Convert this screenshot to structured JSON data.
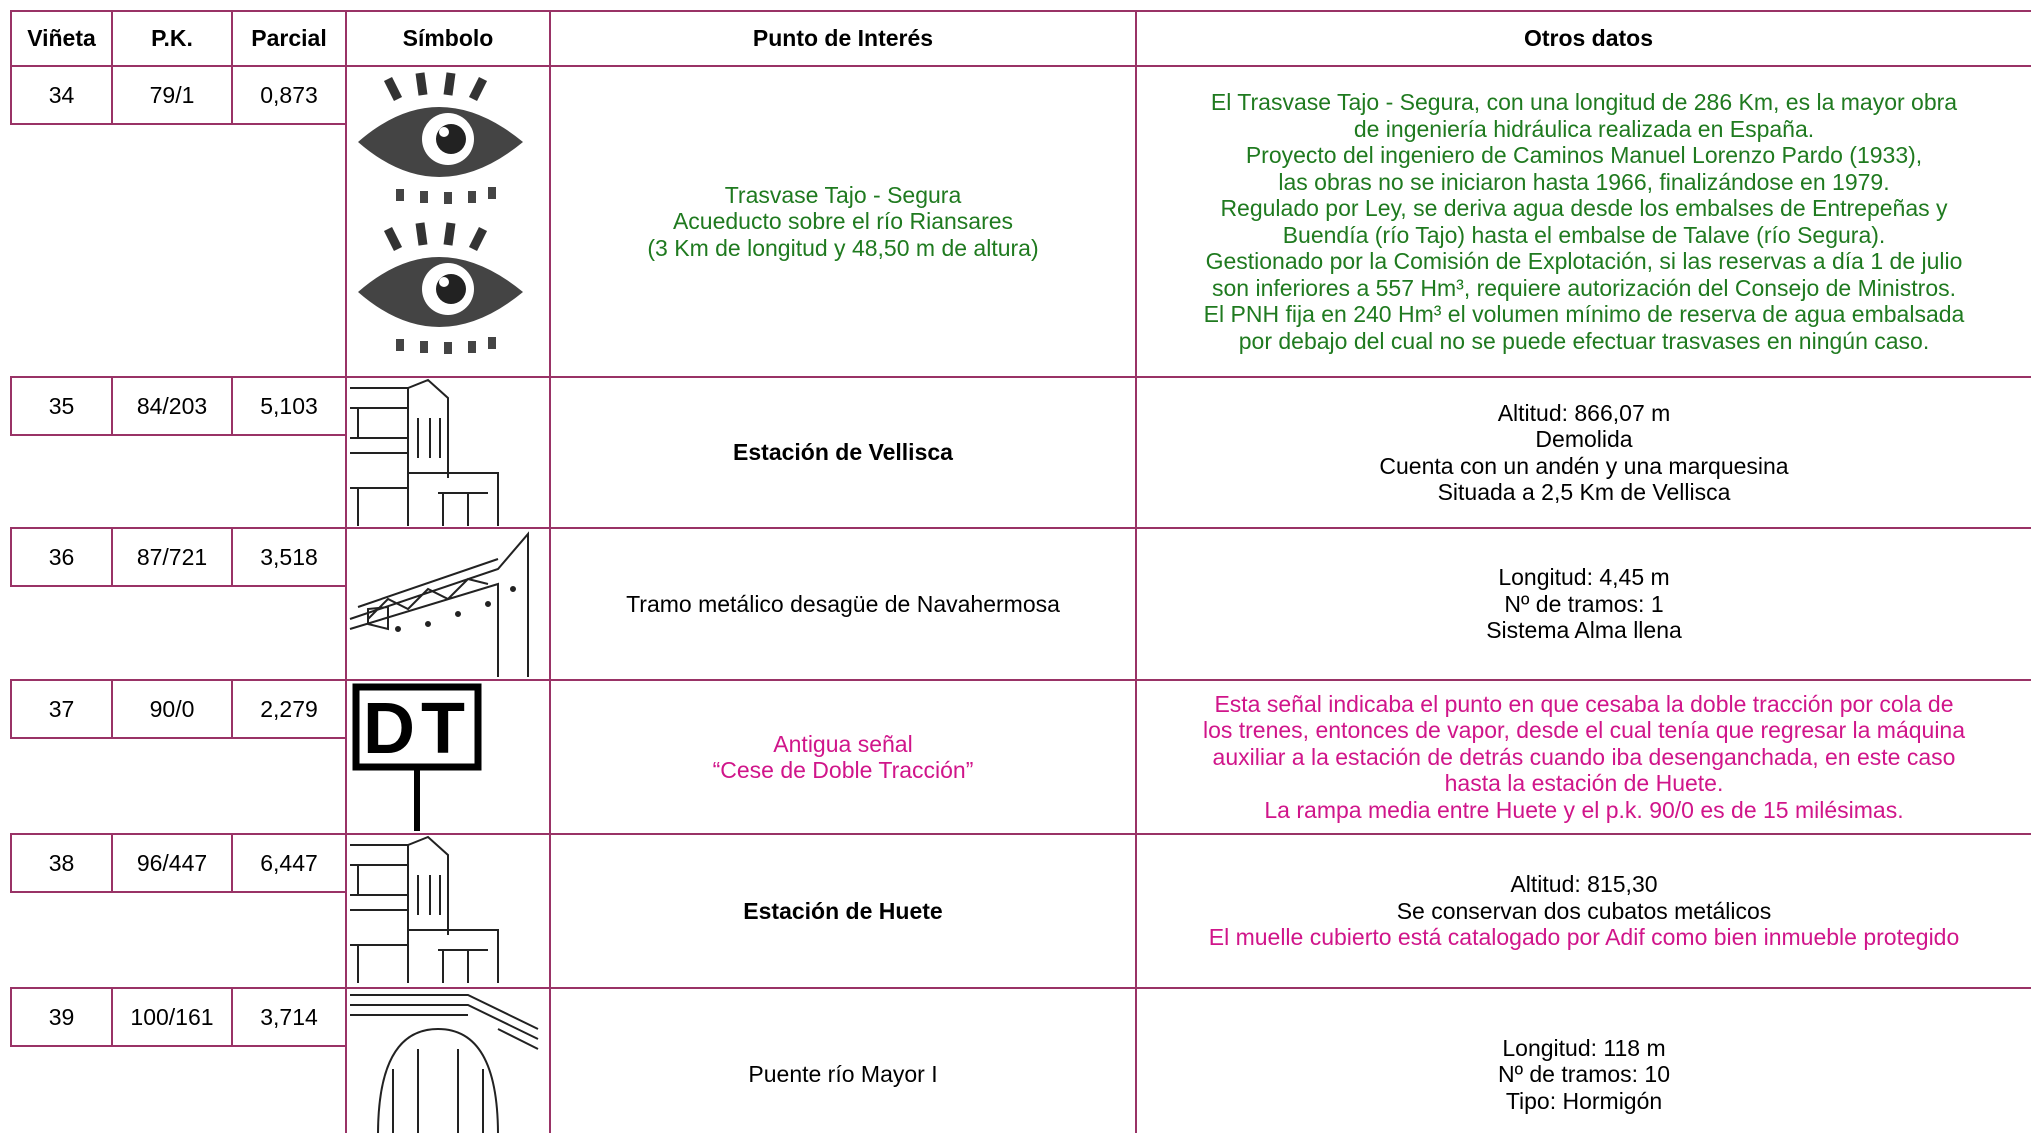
{
  "header": [
    "Viñeta",
    "P.K.",
    "Parcial",
    "Símbolo",
    "Punto de Interés",
    "Otros datos"
  ],
  "rows": [
    {
      "vineta": "34",
      "pk": "79/1",
      "parcial": "0,873",
      "punto": [
        "Trasvase Tajo - Segura",
        "Acueducto sobre el río Riansares",
        "(3 Km de longitud y 48,50 m de altura)"
      ],
      "otros": [
        "El Trasvase Tajo - Segura, con una longitud de 286 Km, es la mayor obra",
        "de ingeniería hidráulica realizada en España.",
        "Proyecto del ingeniero de Caminos Manuel Lorenzo Pardo (1933),",
        "las obras no se iniciaron hasta 1966, finalizándose en 1979.",
        "Regulado por Ley, se deriva agua desde los embalses de Entrepeñas y",
        "Buendía (río Tajo) hasta el embalse de Talave (río Segura).",
        "Gestionado por la Comisión de Explotación, si las reservas a día 1 de julio",
        "son inferiores a 557 Hm³, requiere autorización del Consejo de Ministros.",
        "El PNH fija en 240 Hm³ el volumen mínimo de reserva de agua embalsada",
        "por debajo del cual no se puede efectuar trasvases en ningún caso."
      ]
    },
    {
      "vineta": "35",
      "pk": "84/203",
      "parcial": "5,103",
      "punto": [
        "Estación de Vellisca"
      ],
      "otros": [
        "Altitud: 866,07 m",
        "Demolida",
        "Cuenta con un andén y una marquesina",
        "Situada a 2,5 Km de Vellisca"
      ]
    },
    {
      "vineta": "36",
      "pk": "87/721",
      "parcial": "3,518",
      "punto": [
        "Tramo metálico desagüe de Navahermosa"
      ],
      "otros": [
        "Longitud: 4,45 m",
        "Nº de tramos: 1",
        "Sistema Alma llena"
      ]
    },
    {
      "vineta": "37",
      "pk": "90/0",
      "parcial": "2,279",
      "punto": [
        "Antigua señal",
        "“Cese de Doble Tracción”"
      ],
      "otros": [
        "Esta señal indicaba el punto en que cesaba la doble tracción por cola de",
        "los trenes, entonces de vapor, desde el cual tenía que regresar la máquina",
        "auxiliar a la estación de detrás cuando iba desenganchada, en este caso",
        "hasta la estación de Huete.",
        "La rampa media entre Huete y el p.k. 90/0 es de 15 milésimas."
      ]
    },
    {
      "vineta": "38",
      "pk": "96/447",
      "parcial": "6,447",
      "punto": [
        "Estación de Huete"
      ],
      "otros": [
        "Altitud: 815,30",
        "Se conservan dos cubatos metálicos",
        "El muelle cubierto está catalogado por Adif como bien inmueble protegido"
      ]
    },
    {
      "vineta": "39",
      "pk": "100/161",
      "parcial": "3,714",
      "punto": [
        "Puente río Mayor I"
      ],
      "otros": [
        "Longitud: 118 m",
        "Nº de tramos: 10",
        "Tipo: Hormigón"
      ]
    }
  ]
}
